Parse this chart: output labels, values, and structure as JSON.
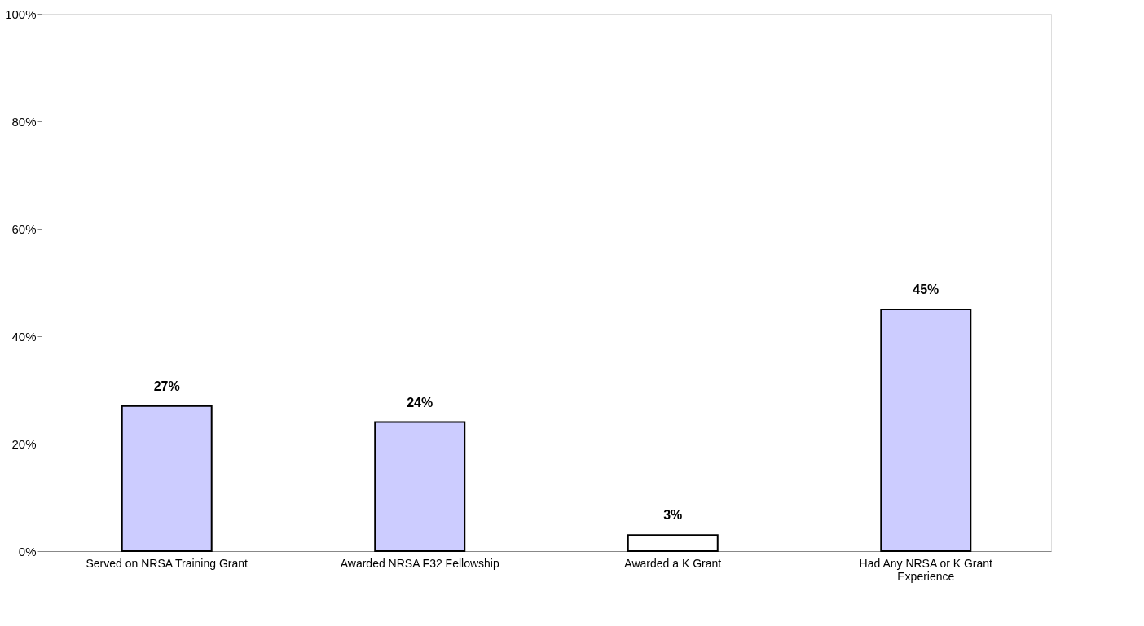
{
  "chart_data": {
    "type": "bar",
    "categories": [
      "Served on NRSA Training Grant",
      "Awarded NRSA F32 Fellowship",
      "Awarded a K Grant",
      "Had Any NRSA or K Grant Experience"
    ],
    "values": [
      27,
      24,
      3,
      45
    ],
    "colors": [
      "#ccccff",
      "#ccccff",
      "#ffffff",
      "#ccccff"
    ],
    "ylim": [
      0,
      100
    ],
    "yticks": [
      {
        "value": 0,
        "label": "0%"
      },
      {
        "value": 20,
        "label": "20%"
      },
      {
        "value": 40,
        "label": "40%"
      },
      {
        "value": 60,
        "label": "60%"
      },
      {
        "value": 80,
        "label": "80%"
      },
      {
        "value": 100,
        "label": "100%"
      }
    ],
    "value_labels": [
      "27%",
      "24%",
      "3%",
      "45%"
    ],
    "grid": false
  }
}
